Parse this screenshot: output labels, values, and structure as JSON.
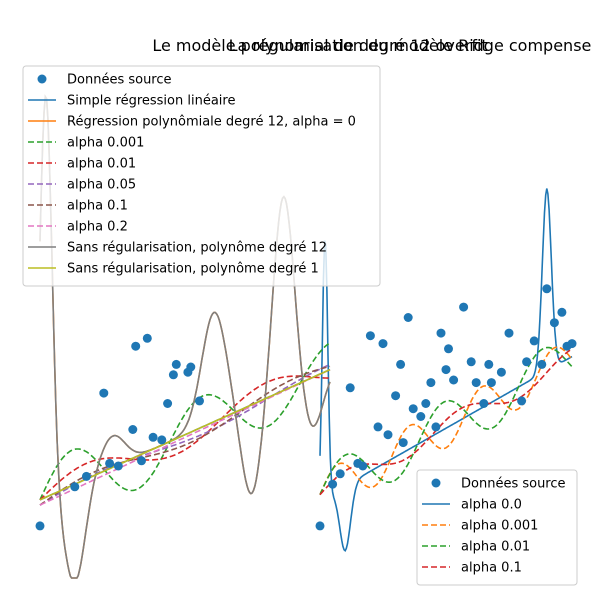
{
  "chart_data": [
    {
      "type": "line",
      "title": "Le modèle polynomial de degré 12 overfit",
      "xlabel": "",
      "ylabel": "",
      "xlim": [
        0,
        1
      ],
      "ylim": [
        -0.15,
        1.75
      ],
      "axes_visible": false,
      "grid": false,
      "legend_position": "top-left",
      "scatter": {
        "name": "Données source",
        "color": "#1f77b4",
        "x": [
          0.0,
          0.12,
          0.16,
          0.22,
          0.24,
          0.27,
          0.32,
          0.33,
          0.35,
          0.37,
          0.39,
          0.42,
          0.44,
          0.46,
          0.47,
          0.51,
          0.52,
          0.55
        ],
        "y": [
          0.0,
          0.15,
          0.19,
          0.51,
          0.24,
          0.23,
          0.37,
          0.69,
          0.25,
          0.72,
          0.34,
          0.33,
          0.47,
          0.58,
          0.62,
          0.59,
          0.61,
          0.48
        ]
      },
      "series": [
        {
          "name": "Simple régression linéaire",
          "color": "#1f77b4",
          "dash": "solid",
          "values_fn": "linear"
        },
        {
          "name": "Régression polynômiale degré 12, alpha = 0",
          "color": "#ff7f0e",
          "dash": "solid",
          "values_fn": "degree12"
        },
        {
          "name": "alpha 0.001",
          "color": "#2ca02c",
          "dash": "dashed",
          "values_fn": "a001"
        },
        {
          "name": "alpha 0.01",
          "color": "#d62728",
          "dash": "dashed",
          "values_fn": "a01"
        },
        {
          "name": "alpha 0.05",
          "color": "#9467bd",
          "dash": "dashed",
          "values_fn": "a05"
        },
        {
          "name": "alpha 0.1",
          "color": "#8c564b",
          "dash": "dashed",
          "values_fn": "a1"
        },
        {
          "name": "alpha 0.2",
          "color": "#e377c2",
          "dash": "dashed",
          "values_fn": "a2"
        },
        {
          "name": "Sans régularisation, polynôme degré 12",
          "color": "#7f7f7f",
          "dash": "solid",
          "values_fn": "degree12"
        },
        {
          "name": "Sans régularisation, polynôme degré 1",
          "color": "#bcbd22",
          "dash": "solid",
          "values_fn": "linear"
        }
      ]
    },
    {
      "type": "line",
      "title": "La régularisation du modèle Ridge compense",
      "xlabel": "",
      "ylabel": "",
      "xlim": [
        0,
        1
      ],
      "ylim": [
        -0.15,
        1.75
      ],
      "axes_visible": false,
      "grid": false,
      "legend_position": "bottom-right",
      "scatter": {
        "name": "Données source",
        "color": "#1f77b4",
        "x": [
          0.0,
          0.05,
          0.08,
          0.12,
          0.15,
          0.17,
          0.2,
          0.23,
          0.25,
          0.27,
          0.3,
          0.32,
          0.33,
          0.35,
          0.37,
          0.4,
          0.42,
          0.44,
          0.46,
          0.48,
          0.5,
          0.51,
          0.53,
          0.57,
          0.6,
          0.62,
          0.65,
          0.67,
          0.68,
          0.72,
          0.75,
          0.8,
          0.82,
          0.85,
          0.88,
          0.9,
          0.93,
          0.96,
          0.98,
          1.0
        ],
        "y": [
          0.0,
          0.16,
          0.2,
          0.53,
          0.24,
          0.23,
          0.73,
          0.38,
          0.7,
          0.35,
          0.5,
          0.62,
          0.32,
          0.8,
          0.45,
          0.42,
          0.47,
          0.55,
          0.38,
          0.74,
          0.6,
          0.68,
          0.56,
          0.84,
          0.63,
          0.55,
          0.47,
          0.62,
          0.55,
          0.59,
          0.74,
          0.48,
          0.63,
          0.71,
          0.62,
          0.91,
          0.78,
          0.82,
          0.69,
          0.7
        ]
      },
      "series": [
        {
          "name": "alpha 0.0",
          "color": "#1f77b4",
          "dash": "solid",
          "values_fn": "r0"
        },
        {
          "name": "alpha 0.001",
          "color": "#ff7f0e",
          "dash": "dashed",
          "values_fn": "r001"
        },
        {
          "name": "alpha 0.01",
          "color": "#2ca02c",
          "dash": "dashed",
          "values_fn": "r01"
        },
        {
          "name": "alpha 0.1",
          "color": "#d62728",
          "dash": "dashed",
          "values_fn": "r1"
        }
      ]
    }
  ]
}
